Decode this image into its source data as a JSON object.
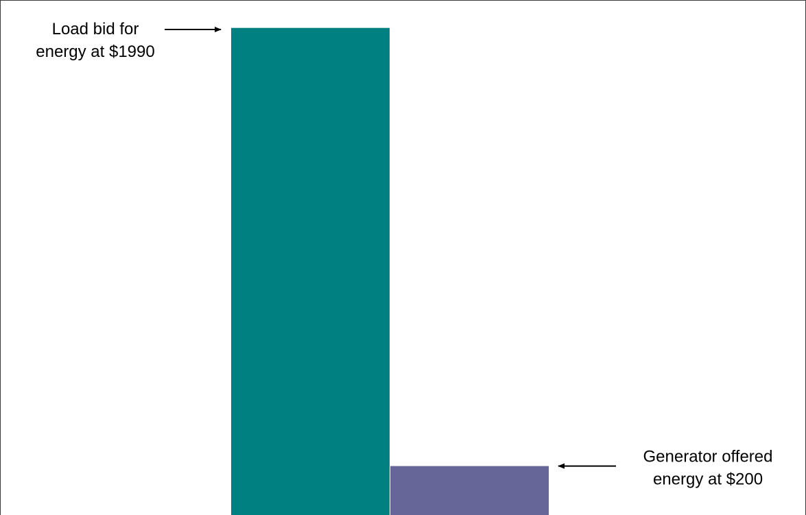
{
  "chart_data": {
    "type": "bar",
    "categories": [
      "Load bid",
      "Generator offer"
    ],
    "values": [
      1990,
      200
    ],
    "colors": [
      "#008080",
      "#666699"
    ],
    "ylim": [
      0,
      2090
    ],
    "grid": false,
    "axes_visible": false,
    "annotations": [
      {
        "lines": [
          "Load bid for",
          "energy at $1990"
        ],
        "target": 0,
        "align": "left",
        "arrow_direction": "right"
      },
      {
        "lines": [
          "Generator offered",
          "energy at $200"
        ],
        "target": 1,
        "align": "right",
        "arrow_direction": "left"
      }
    ]
  }
}
